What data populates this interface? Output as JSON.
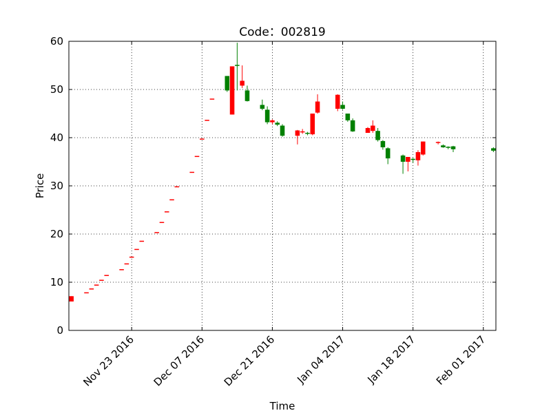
{
  "chart_data": {
    "type": "candlestick",
    "title": "Code：002819",
    "x_label": "Time",
    "y_label": "Price",
    "up_color": "#ff0000",
    "down_color": "#008000",
    "grid": true,
    "x": [
      "2016-11-11",
      "2016-11-14",
      "2016-11-15",
      "2016-11-16",
      "2016-11-17",
      "2016-11-18",
      "2016-11-21",
      "2016-11-22",
      "2016-11-23",
      "2016-11-24",
      "2016-11-25",
      "2016-11-28",
      "2016-11-29",
      "2016-11-30",
      "2016-12-01",
      "2016-12-02",
      "2016-12-05",
      "2016-12-06",
      "2016-12-07",
      "2016-12-08",
      "2016-12-09",
      "2016-12-12",
      "2016-12-13",
      "2016-12-14",
      "2016-12-15",
      "2016-12-16",
      "2016-12-19",
      "2016-12-20",
      "2016-12-21",
      "2016-12-22",
      "2016-12-23",
      "2016-12-26",
      "2016-12-27",
      "2016-12-28",
      "2016-12-29",
      "2016-12-30",
      "2017-01-03",
      "2017-01-04",
      "2017-01-05",
      "2017-01-06",
      "2017-01-09",
      "2017-01-10",
      "2017-01-11",
      "2017-01-12",
      "2017-01-13",
      "2017-01-16",
      "2017-01-17",
      "2017-01-18",
      "2017-01-19",
      "2017-01-20",
      "2017-01-23",
      "2017-01-24",
      "2017-01-25",
      "2017-01-26",
      "2017-02-03"
    ],
    "open": [
      6.0,
      7.8,
      8.6,
      9.4,
      10.4,
      11.4,
      12.6,
      13.8,
      15.2,
      16.8,
      18.5,
      20.3,
      22.4,
      24.6,
      27.1,
      29.8,
      32.8,
      36.1,
      39.7,
      43.6,
      48.0,
      52.8,
      44.8,
      55.0,
      50.8,
      49.8,
      46.8,
      45.8,
      43.2,
      43.1,
      42.5,
      40.4,
      41.0,
      40.9,
      40.7,
      45.2,
      46.0,
      46.8,
      45.0,
      43.6,
      41.0,
      41.4,
      41.4,
      39.3,
      37.8,
      36.3,
      35.0,
      35.5,
      35.3,
      36.5,
      38.8,
      38.4,
      38.0,
      38.2,
      37.8
    ],
    "high": [
      7.1,
      7.8,
      8.6,
      9.4,
      10.4,
      11.4,
      12.6,
      13.8,
      15.2,
      16.8,
      18.5,
      20.3,
      22.4,
      24.6,
      27.1,
      29.8,
      32.8,
      36.1,
      39.7,
      43.6,
      48.0,
      52.8,
      54.8,
      59.7,
      55.0,
      50.8,
      47.9,
      46.5,
      43.8,
      43.4,
      42.8,
      41.6,
      41.8,
      41.2,
      45.0,
      49.0,
      49.0,
      47.5,
      45.0,
      44.0,
      42.2,
      43.6,
      42.0,
      39.5,
      38.0,
      36.5,
      36.0,
      35.8,
      37.4,
      39.2,
      39.2,
      38.6,
      38.2,
      38.3,
      38.0
    ],
    "low": [
      6.0,
      7.8,
      8.6,
      9.4,
      10.4,
      11.4,
      12.6,
      13.8,
      15.2,
      16.8,
      18.5,
      20.3,
      22.4,
      24.6,
      27.1,
      29.8,
      32.8,
      36.1,
      39.7,
      43.6,
      48.0,
      49.5,
      44.8,
      49.8,
      50.3,
      47.5,
      45.7,
      42.8,
      42.8,
      42.4,
      40.2,
      38.6,
      40.8,
      40.5,
      40.5,
      45.0,
      45.5,
      45.8,
      43.3,
      41.2,
      41.0,
      41.0,
      39.2,
      37.5,
      34.5,
      32.5,
      33.0,
      34.8,
      34.2,
      36.3,
      38.6,
      37.9,
      37.6,
      37.0,
      37.0
    ],
    "close": [
      7.1,
      7.8,
      8.6,
      9.4,
      10.4,
      11.4,
      12.6,
      13.8,
      15.2,
      16.8,
      18.5,
      20.3,
      22.4,
      24.6,
      27.1,
      29.8,
      32.8,
      36.1,
      39.7,
      43.6,
      48.0,
      49.8,
      54.8,
      54.8,
      51.8,
      47.6,
      46.0,
      43.2,
      43.6,
      42.7,
      40.4,
      41.5,
      41.2,
      40.7,
      45.0,
      47.5,
      48.9,
      46.0,
      43.6,
      41.3,
      42.0,
      42.5,
      39.5,
      38.0,
      35.7,
      35.0,
      36.0,
      35.3,
      37.0,
      39.2,
      39.0,
      38.0,
      37.8,
      37.6,
      37.3
    ],
    "xlim": [
      "2016-11-10T12:00:00Z",
      "2017-02-03T12:00:00Z"
    ],
    "xticks": [
      {
        "value": "2016-11-23",
        "label": "Nov 23 2016"
      },
      {
        "value": "2016-12-07",
        "label": "Dec 07 2016"
      },
      {
        "value": "2016-12-21",
        "label": "Dec 21 2016"
      },
      {
        "value": "2017-01-04",
        "label": "Jan 04 2017"
      },
      {
        "value": "2017-01-18",
        "label": "Jan 18 2017"
      },
      {
        "value": "2017-02-01",
        "label": "Feb 01 2017"
      }
    ],
    "ylim": [
      0,
      60
    ],
    "yticks": [
      0,
      10,
      20,
      30,
      40,
      50,
      60
    ]
  }
}
